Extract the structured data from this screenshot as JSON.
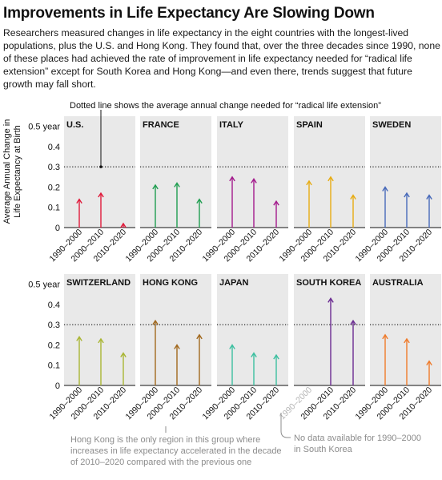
{
  "title": "Improvements in Life Expectancy Are Slowing Down",
  "subtitle": "Researchers measured changes in life expectancy in the eight countries with the longest-lived populations, plus the U.S. and Hong Kong. They found that, over the three decades since 1990, none of these places had achieved the rate of improvement in life expectancy needed for “radical life extension” except for South Korea and Hong Kong—and even there, trends suggest that future growth may fall short.",
  "chart_data": {
    "type": "small-multiples-arrow",
    "y_axis_label_lines": [
      "Average Annual Change in",
      "Life Expectancy at Birth"
    ],
    "y_ticks": [
      {
        "value": 0,
        "label": "0"
      },
      {
        "value": 0.1,
        "label": "0.1"
      },
      {
        "value": 0.2,
        "label": "0.2"
      },
      {
        "value": 0.3,
        "label": "0.3"
      },
      {
        "value": 0.4,
        "label": "0.4"
      },
      {
        "value": 0.5,
        "label": "0.5 year"
      }
    ],
    "ylim": [
      0,
      0.55
    ],
    "threshold": 0.3,
    "categories": [
      "1990–2000",
      "2000–2010",
      "2010–2020"
    ],
    "panels": [
      {
        "name": "U.S.",
        "color": "#e0193a",
        "values": [
          0.14,
          0.17,
          0.02
        ]
      },
      {
        "name": "FRANCE",
        "color": "#1f9e50",
        "values": [
          0.21,
          0.22,
          0.14
        ]
      },
      {
        "name": "ITALY",
        "color": "#a3198c",
        "values": [
          0.25,
          0.24,
          0.13
        ]
      },
      {
        "name": "SPAIN",
        "color": "#e7ac13",
        "values": [
          0.23,
          0.25,
          0.16
        ]
      },
      {
        "name": "SWEDEN",
        "color": "#4769b9",
        "values": [
          0.2,
          0.17,
          0.16
        ]
      },
      {
        "name": "SWITZERLAND",
        "color": "#a9b533",
        "values": [
          0.24,
          0.23,
          0.16
        ]
      },
      {
        "name": "HONG KONG",
        "color": "#a1681d",
        "values": [
          0.32,
          0.2,
          0.25
        ]
      },
      {
        "name": "JAPAN",
        "color": "#3cbfa0",
        "values": [
          0.2,
          0.16,
          0.15
        ]
      },
      {
        "name": "SOUTH KOREA",
        "color": "#6b2c92",
        "values": [
          null,
          0.43,
          0.32
        ]
      },
      {
        "name": "AUSTRALIA",
        "color": "#ef7a2a",
        "values": [
          0.25,
          0.23,
          0.12
        ]
      }
    ],
    "annotations": {
      "threshold_note": "Dotted line shows the average annual change needed for “radical life extension”",
      "hong_kong_note": [
        "Hong Kong is the only region in this group where",
        "increases in life expectancy accelerated in the decade",
        "of 2010–2020 compared with the previous one"
      ],
      "south_korea_note": [
        "No data available for 1990–2000",
        "in South Korea"
      ]
    }
  }
}
